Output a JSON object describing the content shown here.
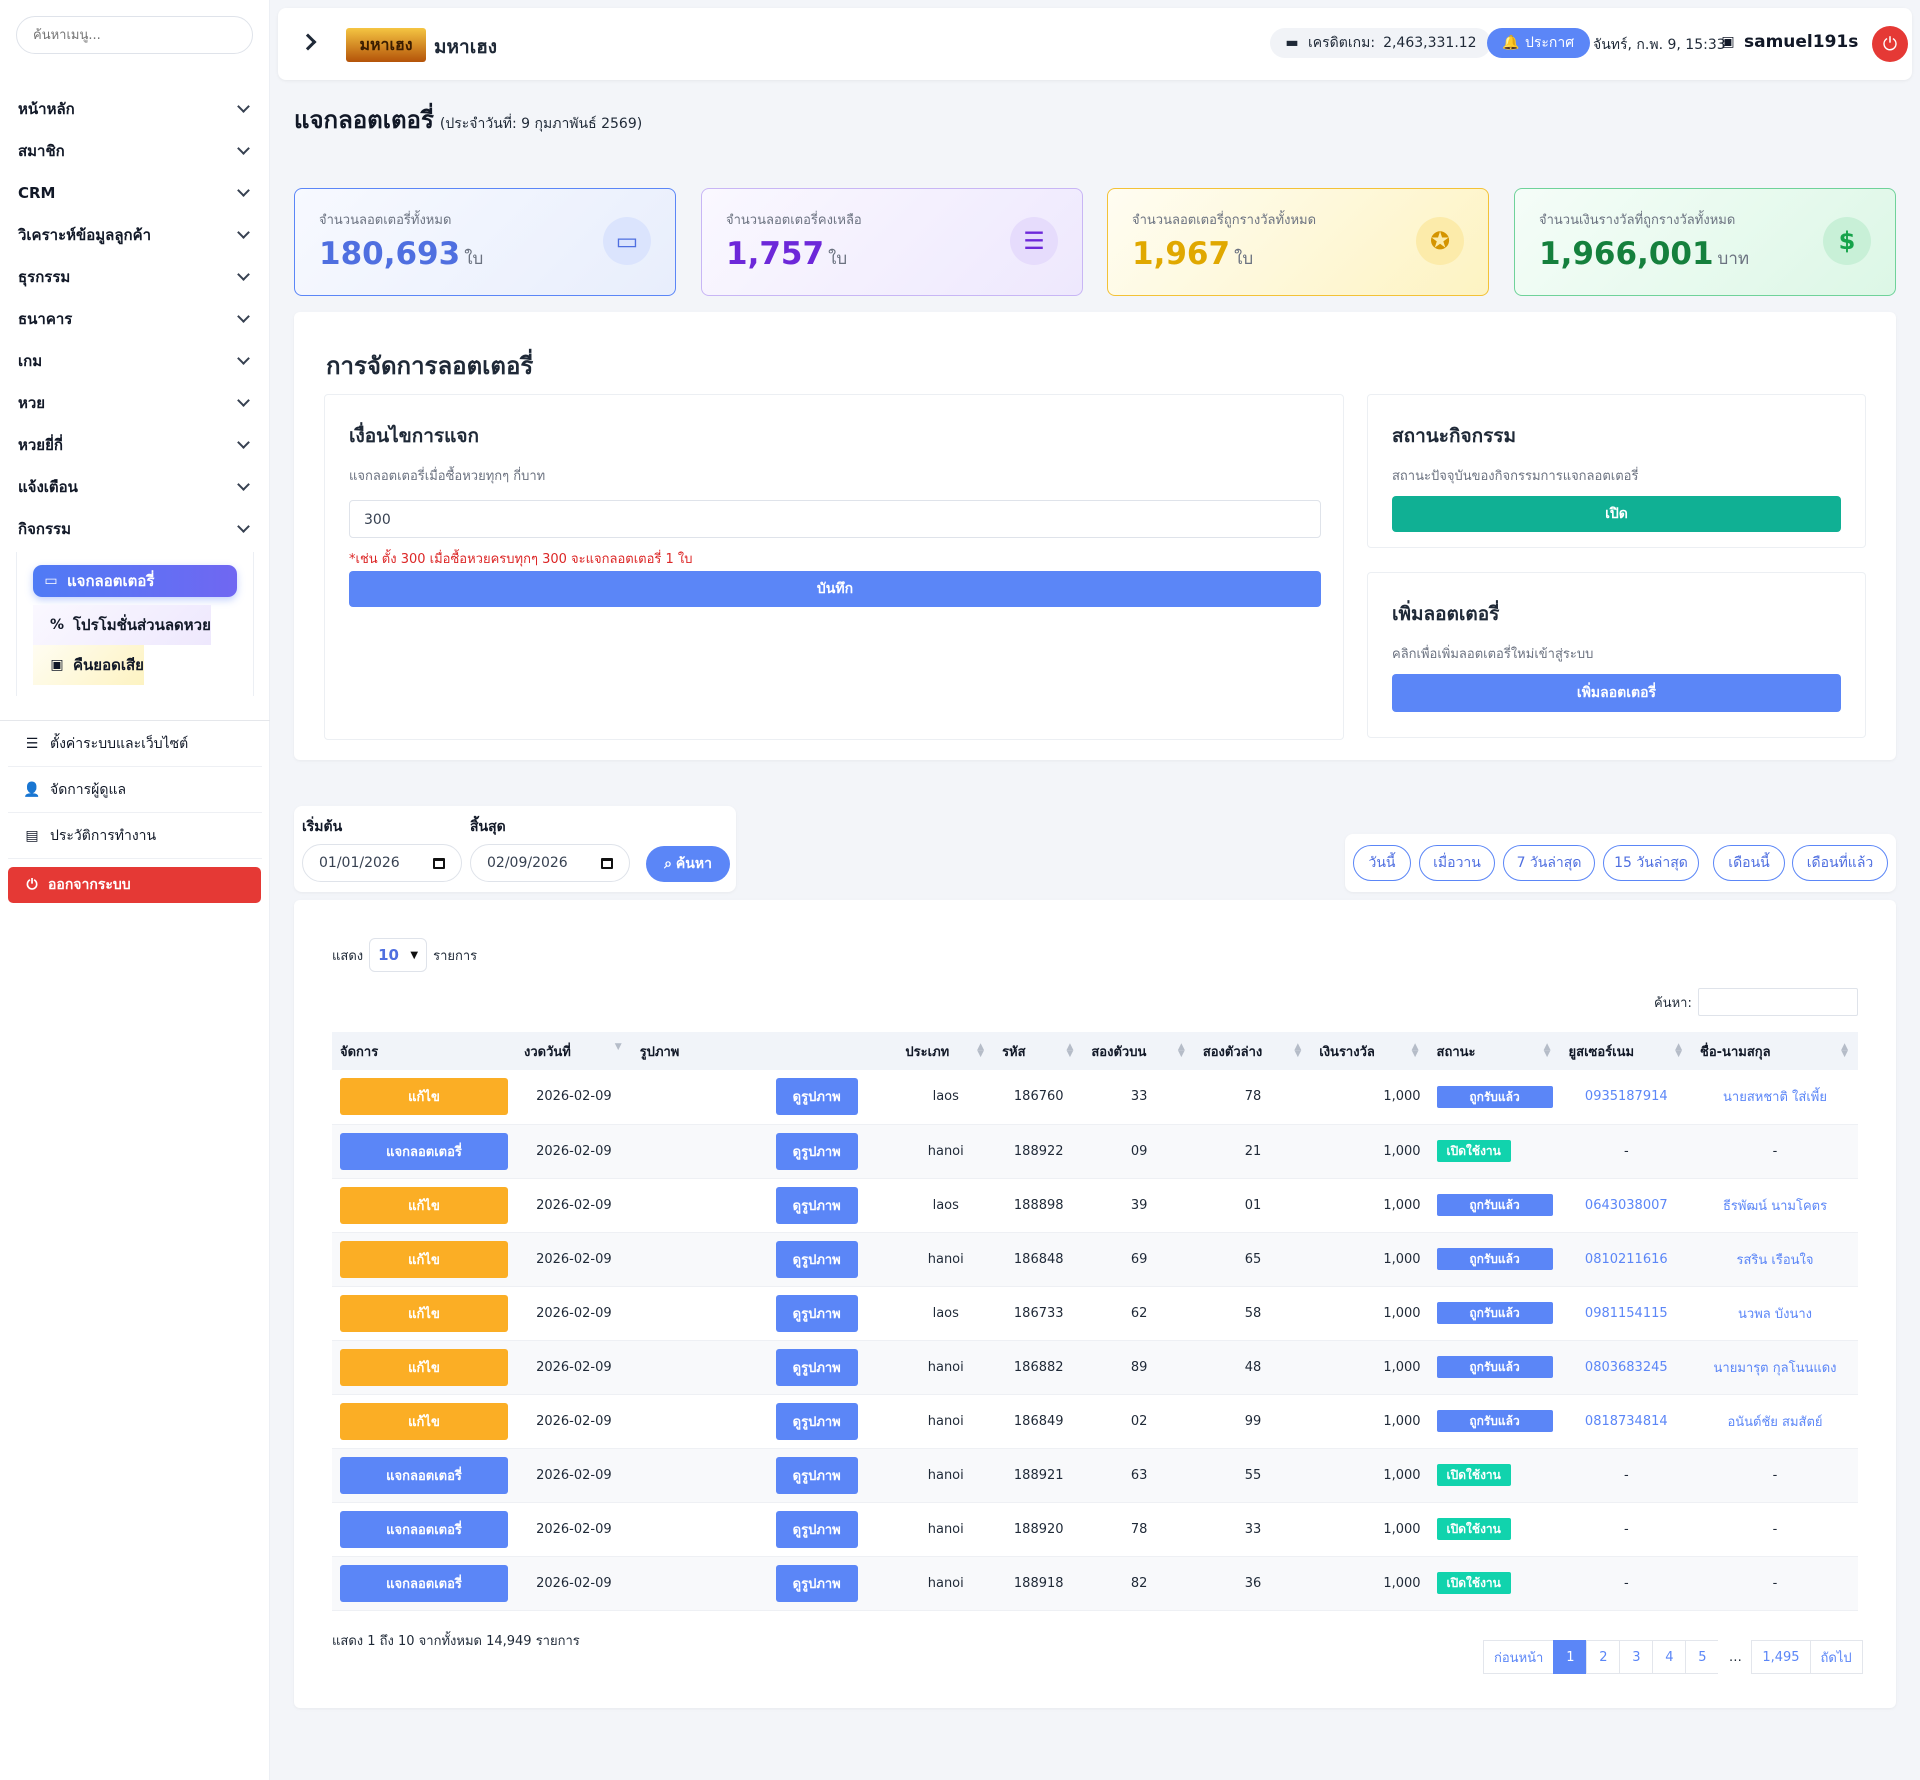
{
  "sidebar": {
    "search_placeholder": "ค้นหาเมนู...",
    "menu": [
      "หน้าหลัก",
      "สมาชิก",
      "CRM",
      "วิเคราะห์ข้อมูลลูกค้า",
      "ธุรกรรม",
      "ธนาคาร",
      "เกม",
      "หวย",
      "หวยยี่กี่",
      "แจ้งเตือน",
      "กิจกรรม"
    ],
    "submenu": [
      "แจกลอตเตอรี่",
      "โปรโมชั่นส่วนลดหวย",
      "คืนยอดเสีย"
    ],
    "bottom": [
      "ตั้งค่าระบบและเว็บไซต์",
      "จัดการผู้ดูแล",
      "ประวัติการทำงาน"
    ],
    "logout": "ออกจากระบบ"
  },
  "header": {
    "logo_text": "มหาเฮง",
    "brand": "มหาเฮง",
    "credit_label": "เครดิตเกม:",
    "credit_value": "2,463,331.12",
    "announce": "ประกาศ",
    "datetime": "จันทร์, ก.พ. 9, 15:33",
    "username": "samuel191s"
  },
  "page": {
    "title": "แจกลอตเตอรี่",
    "subtitle": "(ประจำวันที่: 9 กุมภาพันธ์ 2569)"
  },
  "stats": [
    {
      "label": "จำนวนลอตเตอรี่ทั้งหมด",
      "value": "180,693",
      "unit": "ใบ",
      "icon": "ticket-icon"
    },
    {
      "label": "จำนวนลอตเตอรี่คงเหลือ",
      "value": "1,757",
      "unit": "ใบ",
      "icon": "list-icon"
    },
    {
      "label": "จำนวนลอตเตอรี่ถูกรางวัลทั้งหมด",
      "value": "1,967",
      "unit": "ใบ",
      "icon": "award-icon"
    },
    {
      "label": "จำนวนเงินรางวัลที่ถูกรางวัลทั้งหมด",
      "value": "1,966,001",
      "unit": "บาท",
      "icon": "dollar-icon"
    }
  ],
  "manage": {
    "title": "การจัดการลอตเตอรี่",
    "condition": {
      "title": "เงื่อนไขการแจก",
      "desc": "แจกลอตเตอรี่เมื่อซื้อหวยทุกๆ กี่บาท",
      "value": "300",
      "note": "*เช่น ตั้ง 300 เมื่อซื้อหวยครบทุกๆ 300 จะแจกลอตเตอรี่ 1 ใบ",
      "save": "บันทึก"
    },
    "activity": {
      "title": "สถานะกิจกรรม",
      "desc": "สถานะปัจจุบันของกิจกรรมการแจกลอตเตอรี่",
      "button": "เปิด"
    },
    "add": {
      "title": "เพิ่มลอตเตอรี่",
      "desc": "คลิกเพื่อเพิ่มลอตเตอรี่ใหม่เข้าสู่ระบบ",
      "button": "เพิ่มลอตเตอรี่"
    }
  },
  "filter": {
    "start_label": "เริ่มต้น",
    "start_value": "01/01/2026",
    "end_label": "สิ้นสุด",
    "end_value": "02/09/2026",
    "search": "ค้นหา",
    "quick": [
      "วันนี้",
      "เมื่อวาน",
      "7 วันล่าสุด",
      "15 วันล่าสุด",
      "เดือนนี้",
      "เดือนที่แล้ว"
    ]
  },
  "table": {
    "show_label": "แสดง",
    "page_size": "10",
    "rows_label": "รายการ",
    "search_label": "ค้นหา:",
    "columns": [
      "จัดการ",
      "งวดวันที่",
      "รูปภาพ",
      "ประเภท",
      "รหัส",
      "สองตัวบน",
      "สองตัวล่าง",
      "เงินรางวัล",
      "สถานะ",
      "ยูสเซอร์เนม",
      "ชื่อ-นามสกุล"
    ],
    "rows": [
      {
        "action": "แก้ไข",
        "kind": "edit",
        "date": "2026-02-09",
        "view": "ดูรูปภาพ",
        "type": "laos",
        "code": "186760",
        "top": "33",
        "bottom": "78",
        "prize": "1,000",
        "status": "ถูกรับแล้ว",
        "st": "won",
        "user": "0935187914",
        "name": "นายสหชาติ ใส่เพี้ย"
      },
      {
        "action": "แจกลอตเตอรี่",
        "kind": "give",
        "date": "2026-02-09",
        "view": "ดูรูปภาพ",
        "type": "hanoi",
        "code": "188922",
        "top": "09",
        "bottom": "21",
        "prize": "1,000",
        "status": "เปิดใช้งาน",
        "st": "open",
        "user": "-",
        "name": "-"
      },
      {
        "action": "แก้ไข",
        "kind": "edit",
        "date": "2026-02-09",
        "view": "ดูรูปภาพ",
        "type": "laos",
        "code": "188898",
        "top": "39",
        "bottom": "01",
        "prize": "1,000",
        "status": "ถูกรับแล้ว",
        "st": "won",
        "user": "0643038007",
        "name": "ธีรพัฒน์ นามโคตร"
      },
      {
        "action": "แก้ไข",
        "kind": "edit",
        "date": "2026-02-09",
        "view": "ดูรูปภาพ",
        "type": "hanoi",
        "code": "186848",
        "top": "69",
        "bottom": "65",
        "prize": "1,000",
        "status": "ถูกรับแล้ว",
        "st": "won",
        "user": "0810211616",
        "name": "รสริน เรือนใจ"
      },
      {
        "action": "แก้ไข",
        "kind": "edit",
        "date": "2026-02-09",
        "view": "ดูรูปภาพ",
        "type": "laos",
        "code": "186733",
        "top": "62",
        "bottom": "58",
        "prize": "1,000",
        "status": "ถูกรับแล้ว",
        "st": "won",
        "user": "0981154115",
        "name": "นวพล บังนาง"
      },
      {
        "action": "แก้ไข",
        "kind": "edit",
        "date": "2026-02-09",
        "view": "ดูรูปภาพ",
        "type": "hanoi",
        "code": "186882",
        "top": "89",
        "bottom": "48",
        "prize": "1,000",
        "status": "ถูกรับแล้ว",
        "st": "won",
        "user": "0803683245",
        "name": "นายมารุต กุลโนนแดง"
      },
      {
        "action": "แก้ไข",
        "kind": "edit",
        "date": "2026-02-09",
        "view": "ดูรูปภาพ",
        "type": "hanoi",
        "code": "186849",
        "top": "02",
        "bottom": "99",
        "prize": "1,000",
        "status": "ถูกรับแล้ว",
        "st": "won",
        "user": "0818734814",
        "name": "อนันต์ชัย สมสัตย์"
      },
      {
        "action": "แจกลอตเตอรี่",
        "kind": "give",
        "date": "2026-02-09",
        "view": "ดูรูปภาพ",
        "type": "hanoi",
        "code": "188921",
        "top": "63",
        "bottom": "55",
        "prize": "1,000",
        "status": "เปิดใช้งาน",
        "st": "open",
        "user": "-",
        "name": "-"
      },
      {
        "action": "แจกลอตเตอรี่",
        "kind": "give",
        "date": "2026-02-09",
        "view": "ดูรูปภาพ",
        "type": "hanoi",
        "code": "188920",
        "top": "78",
        "bottom": "33",
        "prize": "1,000",
        "status": "เปิดใช้งาน",
        "st": "open",
        "user": "-",
        "name": "-"
      },
      {
        "action": "แจกลอตเตอรี่",
        "kind": "give",
        "date": "2026-02-09",
        "view": "ดูรูปภาพ",
        "type": "hanoi",
        "code": "188918",
        "top": "82",
        "bottom": "36",
        "prize": "1,000",
        "status": "เปิดใช้งาน",
        "st": "open",
        "user": "-",
        "name": "-"
      }
    ],
    "info": "แสดง 1 ถึง 10 จากทั้งหมด 14,949 รายการ",
    "pager": {
      "prev": "ก่อนหน้า",
      "pages": [
        "1",
        "2",
        "3",
        "4",
        "5"
      ],
      "dots": "…",
      "last": "1,495",
      "next": "ถัดไป"
    }
  }
}
